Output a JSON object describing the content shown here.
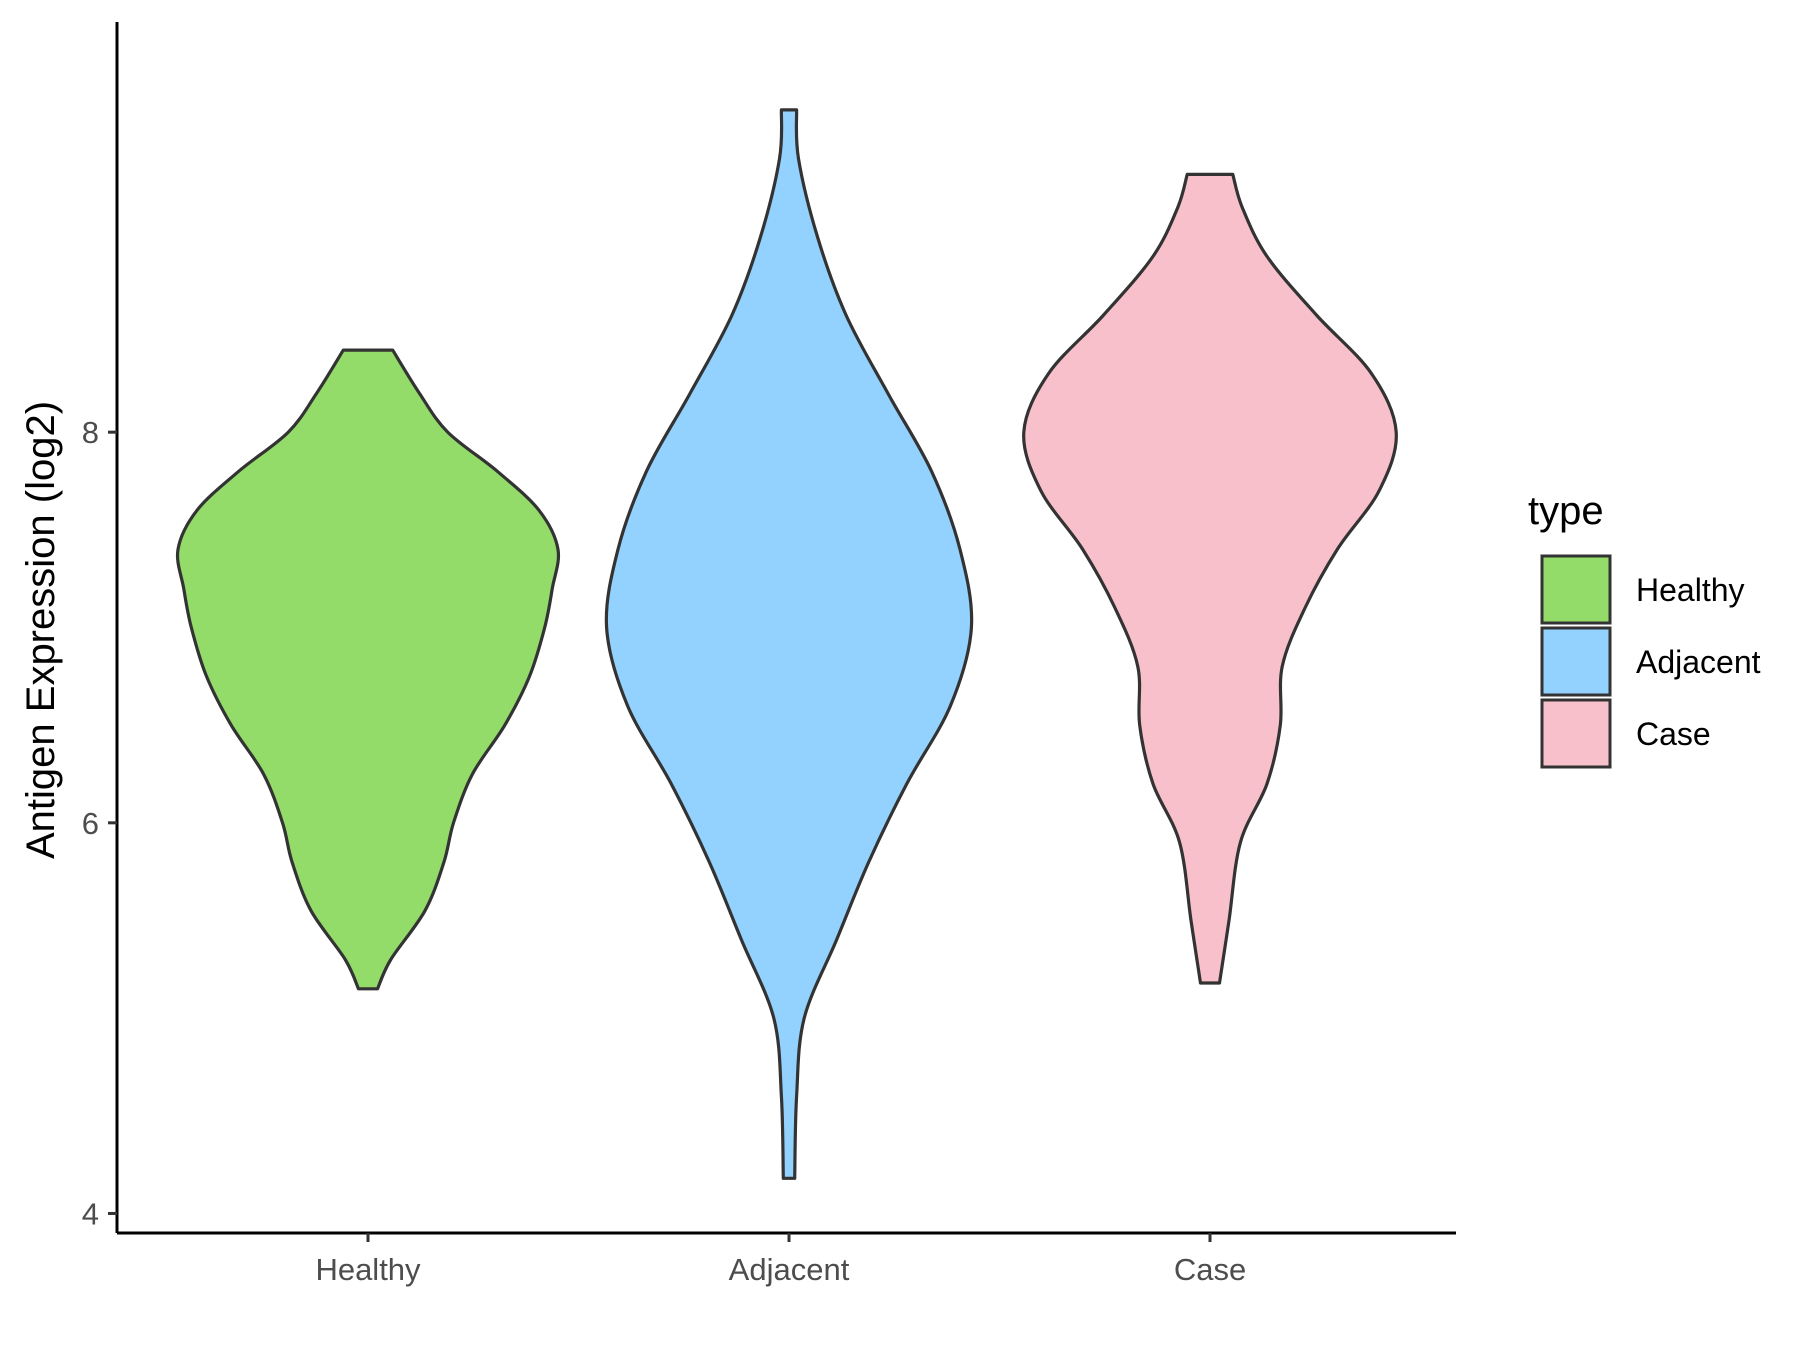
{
  "chart_data": {
    "type": "violin",
    "ylabel": "Antigen Expression (log2)",
    "xlabel": "",
    "ylim": [
      3.9,
      10.1
    ],
    "y_ticks": [
      4,
      6,
      8
    ],
    "categories": [
      "Healthy",
      "Adjacent",
      "Case"
    ],
    "legend": {
      "title": "type",
      "position": "right",
      "items": [
        "Healthy",
        "Adjacent",
        "Case"
      ]
    },
    "colors": {
      "Healthy": "#93dc69",
      "Adjacent": "#93d2fe",
      "Case": "#f8c0cb",
      "outline": "#333333"
    },
    "series": [
      {
        "name": "Healthy",
        "min": 5.15,
        "max": 8.42,
        "density": [
          {
            "y": 5.15,
            "w": 0.05
          },
          {
            "y": 5.3,
            "w": 0.12
          },
          {
            "y": 5.55,
            "w": 0.3
          },
          {
            "y": 5.8,
            "w": 0.4
          },
          {
            "y": 6.0,
            "w": 0.45
          },
          {
            "y": 6.25,
            "w": 0.55
          },
          {
            "y": 6.5,
            "w": 0.72
          },
          {
            "y": 6.75,
            "w": 0.85
          },
          {
            "y": 7.0,
            "w": 0.93
          },
          {
            "y": 7.2,
            "w": 0.97
          },
          {
            "y": 7.4,
            "w": 1.0
          },
          {
            "y": 7.6,
            "w": 0.9
          },
          {
            "y": 7.8,
            "w": 0.68
          },
          {
            "y": 8.0,
            "w": 0.42
          },
          {
            "y": 8.2,
            "w": 0.27
          },
          {
            "y": 8.42,
            "w": 0.13
          }
        ]
      },
      {
        "name": "Adjacent",
        "min": 4.18,
        "max": 9.65,
        "density": [
          {
            "y": 4.18,
            "w": 0.03
          },
          {
            "y": 4.6,
            "w": 0.04
          },
          {
            "y": 5.0,
            "w": 0.08
          },
          {
            "y": 5.4,
            "w": 0.25
          },
          {
            "y": 5.8,
            "w": 0.42
          },
          {
            "y": 6.2,
            "w": 0.62
          },
          {
            "y": 6.6,
            "w": 0.85
          },
          {
            "y": 7.0,
            "w": 0.96
          },
          {
            "y": 7.4,
            "w": 0.9
          },
          {
            "y": 7.8,
            "w": 0.75
          },
          {
            "y": 8.2,
            "w": 0.52
          },
          {
            "y": 8.6,
            "w": 0.3
          },
          {
            "y": 9.0,
            "w": 0.15
          },
          {
            "y": 9.4,
            "w": 0.05
          },
          {
            "y": 9.65,
            "w": 0.04
          }
        ]
      },
      {
        "name": "Case",
        "min": 5.18,
        "max": 9.32,
        "density": [
          {
            "y": 5.18,
            "w": 0.05
          },
          {
            "y": 5.5,
            "w": 0.1
          },
          {
            "y": 5.9,
            "w": 0.16
          },
          {
            "y": 6.2,
            "w": 0.3
          },
          {
            "y": 6.5,
            "w": 0.37
          },
          {
            "y": 6.8,
            "w": 0.38
          },
          {
            "y": 7.1,
            "w": 0.5
          },
          {
            "y": 7.4,
            "w": 0.67
          },
          {
            "y": 7.7,
            "w": 0.89
          },
          {
            "y": 8.0,
            "w": 0.98
          },
          {
            "y": 8.3,
            "w": 0.85
          },
          {
            "y": 8.6,
            "w": 0.56
          },
          {
            "y": 8.9,
            "w": 0.3
          },
          {
            "y": 9.15,
            "w": 0.17
          },
          {
            "y": 9.32,
            "w": 0.12
          }
        ]
      }
    ]
  }
}
